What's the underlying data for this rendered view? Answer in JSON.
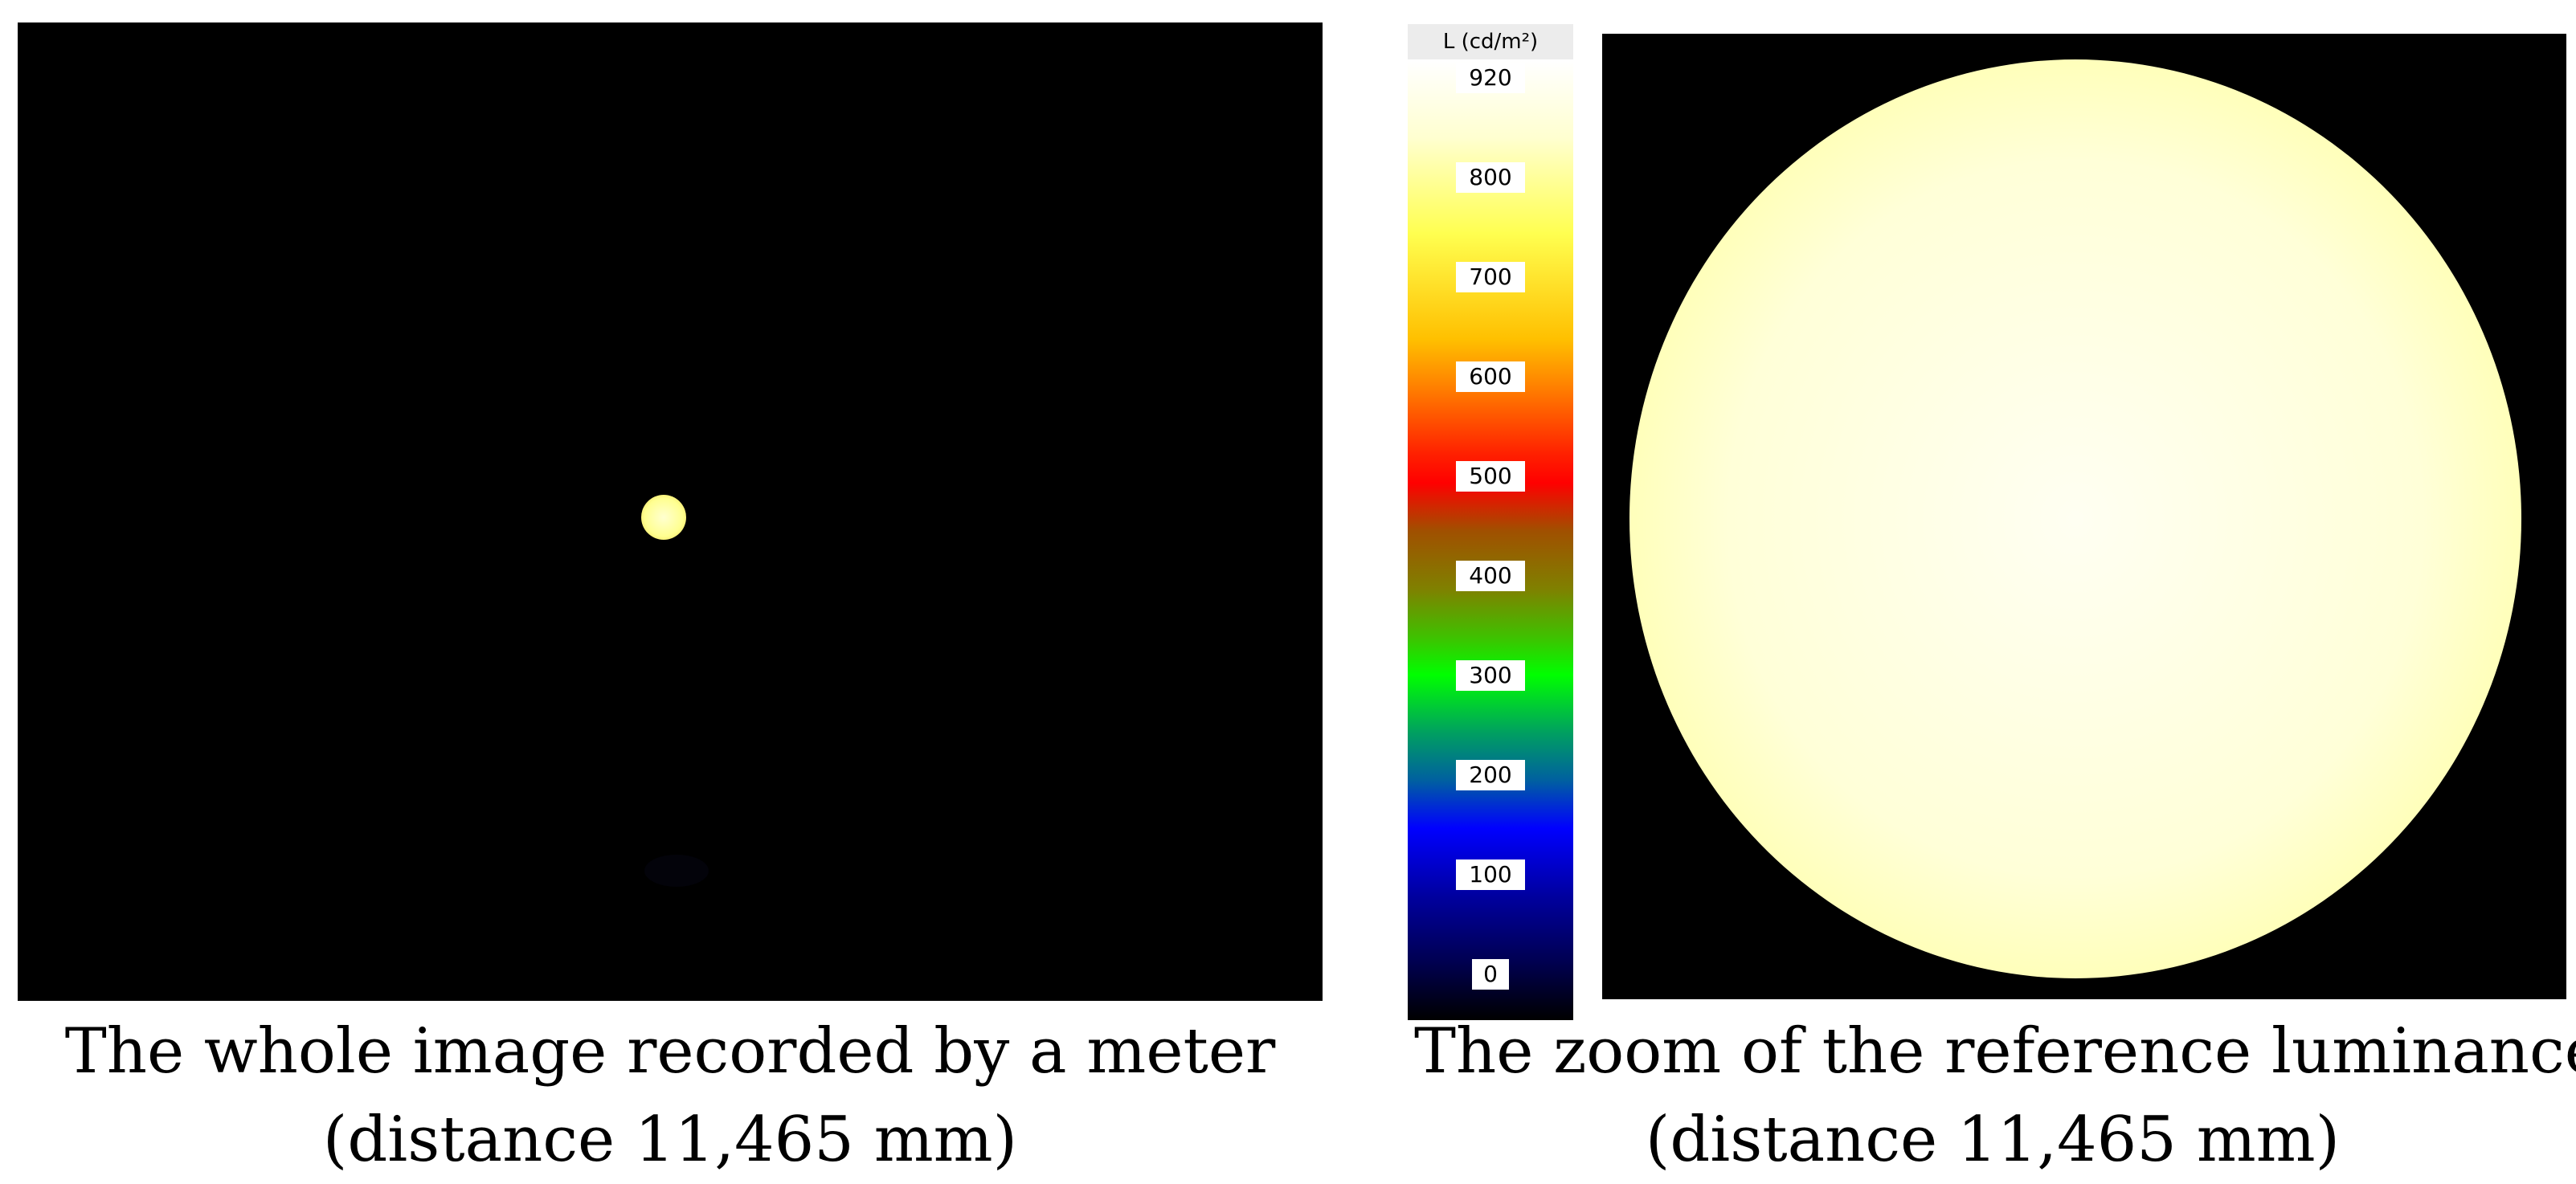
{
  "left_panel": {
    "caption_line1": "The whole image recorded by a meter",
    "caption_line2": "(distance 11,465 mm)"
  },
  "scale": {
    "title": "L (cd/m²)",
    "ticks": [
      "920",
      "800",
      "700",
      "600",
      "500",
      "400",
      "300",
      "200",
      "100",
      "0"
    ]
  },
  "right_panel": {
    "caption_line1": "The zoom of the reference luminance",
    "caption_line2": "(distance 11,465 mm)"
  },
  "colors": {
    "background": "#000000",
    "spot": "#ffff90"
  }
}
